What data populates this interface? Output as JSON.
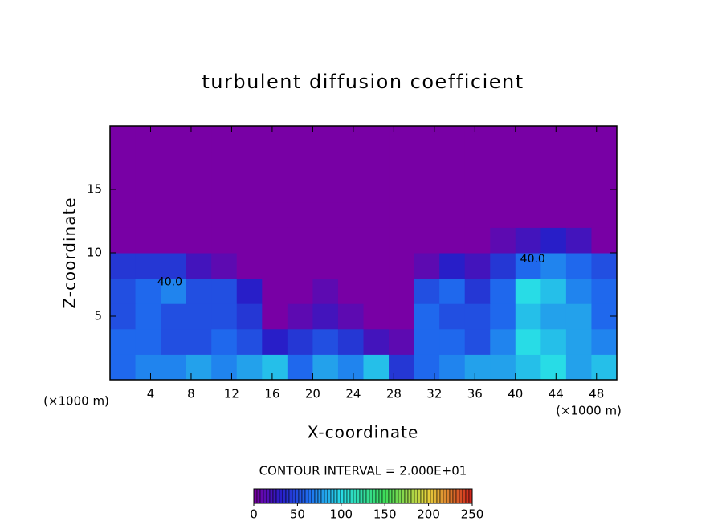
{
  "chart_data": {
    "type": "heatmap",
    "title": "turbulent diffusion coefficient",
    "x_label": "X-coordinate",
    "y_label": "Z-coordinate",
    "unit_label": "(×1000 m)",
    "contour_interval": "CONTOUR INTERVAL = 2.000E+01",
    "xlim": [
      0,
      50
    ],
    "ylim": [
      0,
      20
    ],
    "xticks": [
      4,
      8,
      12,
      16,
      20,
      24,
      28,
      32,
      36,
      40,
      44,
      48
    ],
    "yticks": [
      5,
      10,
      15
    ],
    "x": [
      1.25,
      3.75,
      6.25,
      8.75,
      11.25,
      13.75,
      16.25,
      18.75,
      21.25,
      23.75,
      26.25,
      28.75,
      31.25,
      33.75,
      36.25,
      38.75,
      41.25,
      43.75,
      46.25,
      48.75
    ],
    "y": [
      1,
      3,
      5,
      7,
      9,
      11,
      13,
      15,
      17,
      19
    ],
    "z": [
      [
        60,
        70,
        70,
        80,
        70,
        80,
        90,
        60,
        80,
        70,
        90,
        40,
        60,
        70,
        80,
        80,
        90,
        100,
        80,
        90
      ],
      [
        60,
        60,
        50,
        50,
        60,
        50,
        30,
        40,
        50,
        40,
        20,
        10,
        60,
        60,
        50,
        70,
        100,
        90,
        80,
        70
      ],
      [
        50,
        60,
        50,
        50,
        50,
        40,
        0,
        10,
        20,
        10,
        0,
        0,
        60,
        50,
        50,
        60,
        90,
        80,
        80,
        60
      ],
      [
        50,
        60,
        70,
        50,
        50,
        30,
        0,
        0,
        10,
        0,
        0,
        0,
        50,
        60,
        40,
        60,
        100,
        90,
        70,
        60
      ],
      [
        40,
        40,
        40,
        20,
        10,
        0,
        0,
        0,
        0,
        0,
        0,
        0,
        10,
        30,
        20,
        40,
        60,
        70,
        60,
        50
      ],
      [
        0,
        0,
        0,
        0,
        0,
        0,
        0,
        0,
        0,
        0,
        0,
        0,
        0,
        0,
        0,
        10,
        20,
        30,
        20,
        0
      ],
      [
        0,
        0,
        0,
        0,
        0,
        0,
        0,
        0,
        0,
        0,
        0,
        0,
        0,
        0,
        0,
        0,
        0,
        0,
        0,
        0
      ],
      [
        0,
        0,
        0,
        0,
        0,
        0,
        0,
        0,
        0,
        0,
        0,
        0,
        0,
        0,
        0,
        0,
        0,
        0,
        0,
        0
      ],
      [
        0,
        0,
        0,
        0,
        0,
        0,
        0,
        0,
        0,
        0,
        0,
        0,
        0,
        0,
        0,
        0,
        0,
        0,
        0,
        0
      ],
      [
        0,
        0,
        0,
        0,
        0,
        0,
        0,
        0,
        0,
        0,
        0,
        0,
        0,
        0,
        0,
        0,
        0,
        0,
        0,
        0
      ]
    ],
    "contour_labels": [
      {
        "text": "40.0",
        "x": 5.9,
        "z": 7.7
      },
      {
        "text": "40.0",
        "x": 41.7,
        "z": 9.5
      }
    ],
    "colorbar": {
      "lim": [
        0,
        250
      ],
      "ticks": [
        0,
        50,
        100,
        150,
        200,
        250
      ]
    }
  }
}
